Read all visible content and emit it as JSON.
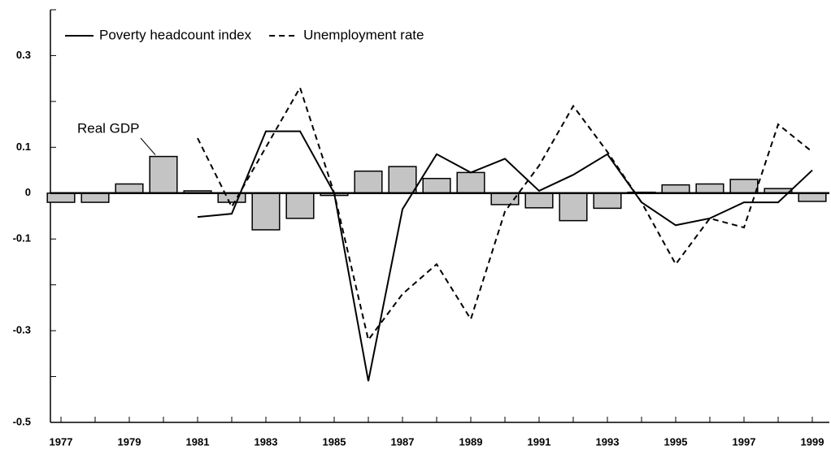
{
  "chart_data": {
    "type": "combo",
    "categories": [
      "1977",
      null,
      "1979",
      null,
      "1981",
      null,
      "1983",
      null,
      "1985",
      null,
      "1987",
      null,
      "1989",
      null,
      "1991",
      null,
      "1993",
      null,
      "1995",
      null,
      "1997",
      null,
      "1999"
    ],
    "series": [
      {
        "name": "Real GDP",
        "type": "bar",
        "color": "#c4c4c4",
        "values": [
          -0.02,
          -0.02,
          0.02,
          0.08,
          0.005,
          -0.02,
          -0.08,
          -0.055,
          -0.005,
          0.048,
          0.058,
          0.032,
          0.045,
          -0.025,
          -0.032,
          -0.06,
          -0.033,
          0.002,
          0.018,
          0.02,
          0.03,
          0.01,
          -0.018
        ]
      },
      {
        "name": "Poverty headcount index",
        "type": "line",
        "style": "solid",
        "color": "#000000",
        "values": [
          null,
          null,
          null,
          null,
          -0.052,
          -0.045,
          0.135,
          0.135,
          0.0,
          -0.41,
          -0.035,
          0.085,
          0.045,
          0.075,
          0.005,
          0.04,
          0.085,
          -0.02,
          -0.07,
          -0.055,
          -0.02,
          -0.02,
          0.05
        ]
      },
      {
        "name": "Unemployment rate",
        "type": "line",
        "style": "dashed",
        "color": "#000000",
        "values": [
          null,
          null,
          null,
          null,
          0.12,
          -0.03,
          0.1,
          0.23,
          0.0,
          -0.32,
          -0.22,
          -0.155,
          -0.275,
          -0.04,
          0.06,
          0.19,
          0.09,
          -0.02,
          -0.155,
          -0.055,
          -0.075,
          0.15,
          0.09
        ]
      }
    ],
    "ylim": [
      -0.5,
      0.4
    ],
    "yticks": [
      0.3,
      0.1,
      0,
      -0.1,
      -0.3,
      -0.5
    ],
    "yminorticks": [
      0.4,
      0.2,
      -0.2,
      -0.4
    ],
    "legend": "top-left"
  }
}
